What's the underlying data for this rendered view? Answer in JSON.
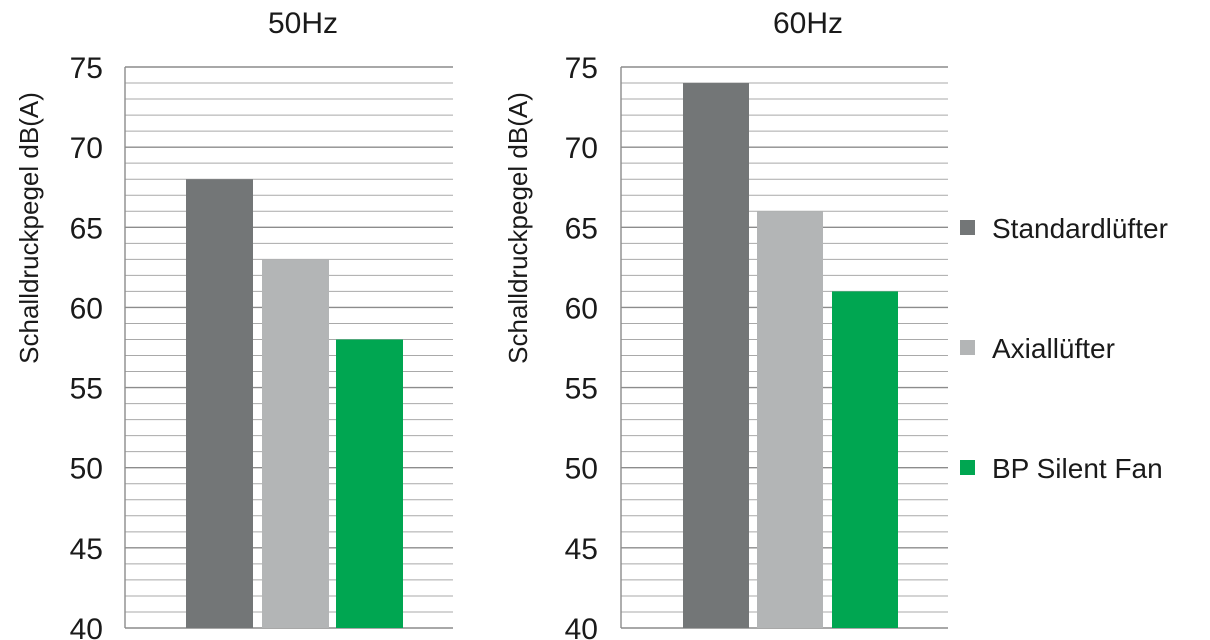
{
  "chart_data": [
    {
      "type": "bar",
      "title": "50Hz",
      "ylabel": "Schalldruckpegel dB(A)",
      "ylim": [
        40,
        75
      ],
      "yticks": [
        "40",
        "45",
        "50",
        "55",
        "60",
        "65",
        "70",
        "75"
      ],
      "categories": [
        "Standardlüfter",
        "Axiallüfter",
        "BP Silent Fan"
      ],
      "values": [
        68,
        63,
        58
      ],
      "colors": [
        "#737677",
        "#b3b5b6",
        "#00a651"
      ],
      "minor_grid_step": 1,
      "grid": true
    },
    {
      "type": "bar",
      "title": "60Hz",
      "ylabel": "Schalldruckpegel dB(A)",
      "ylim": [
        40,
        75
      ],
      "yticks": [
        "40",
        "45",
        "50",
        "55",
        "60",
        "65",
        "70",
        "75"
      ],
      "categories": [
        "Standardlüfter",
        "Axiallüfter",
        "BP Silent Fan"
      ],
      "values": [
        74,
        66,
        61
      ],
      "colors": [
        "#737677",
        "#b3b5b6",
        "#00a651"
      ],
      "minor_grid_step": 1,
      "grid": true
    }
  ],
  "legend": {
    "placement": "right",
    "items": [
      {
        "label": "Standardlüfter",
        "color": "#737677"
      },
      {
        "label": "Axiallüfter",
        "color": "#b3b5b6"
      },
      {
        "label": "BP Silent Fan",
        "color": "#00a651"
      }
    ]
  }
}
